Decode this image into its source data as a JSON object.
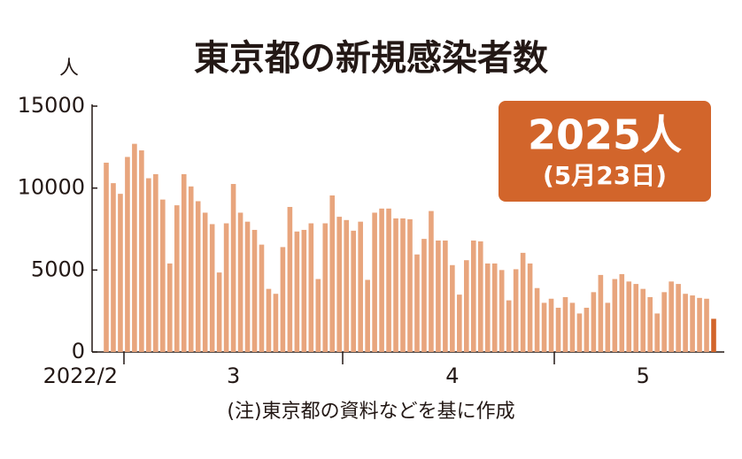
{
  "chart_data": {
    "type": "bar",
    "title": "東京都の新規感染者数",
    "y_unit": "人",
    "annotation": "2025人",
    "annotation_sub": "(5月23日)",
    "note": "(注)東京都の資料などを基に作成",
    "color": "#e8a57d",
    "last_color": "#d2652b",
    "ylim": [
      0,
      15000
    ],
    "yticks": [
      0,
      5000,
      10000,
      15000
    ],
    "categories": [
      "2022/2",
      null,
      null,
      null,
      null,
      null,
      null,
      null,
      null,
      null,
      null,
      null,
      null,
      null,
      null,
      null,
      null,
      null,
      "3",
      null,
      null,
      null,
      null,
      null,
      null,
      null,
      null,
      null,
      null,
      null,
      null,
      null,
      null,
      null,
      null,
      null,
      null,
      null,
      null,
      null,
      null,
      null,
      null,
      null,
      null,
      null,
      null,
      null,
      null,
      "4",
      null,
      null,
      null,
      null,
      null,
      null,
      null,
      null,
      null,
      null,
      null,
      null,
      null,
      null,
      null,
      null,
      null,
      null,
      null,
      null,
      null,
      null,
      null,
      null,
      null,
      null,
      "5",
      null,
      null,
      null,
      null,
      null,
      null,
      null,
      null,
      null,
      null
    ],
    "values": [
      11550,
      10300,
      9650,
      11900,
      12700,
      12300,
      10600,
      10850,
      9300,
      5400,
      8950,
      10850,
      10100,
      9200,
      8500,
      7800,
      4850,
      7850,
      10250,
      8500,
      7950,
      7450,
      6550,
      3850,
      3550,
      6400,
      8850,
      7350,
      7450,
      7850,
      4450,
      7850,
      9550,
      8250,
      8050,
      7400,
      7950,
      4400,
      8500,
      8750,
      8750,
      8150,
      8150,
      8100,
      5950,
      6900,
      8600,
      6800,
      6800,
      5300,
      3500,
      5600,
      6800,
      6750,
      5400,
      5400,
      5000,
      3150,
      5050,
      6050,
      5400,
      3900,
      3000,
      3250,
      2700,
      3350,
      3000,
      2350,
      2700,
      3650,
      4700,
      3000,
      4450,
      4750,
      4300,
      4150,
      3850,
      3350,
      2350,
      3650,
      4300,
      4150,
      3550,
      3450,
      3300,
      3250,
      2025
    ]
  }
}
